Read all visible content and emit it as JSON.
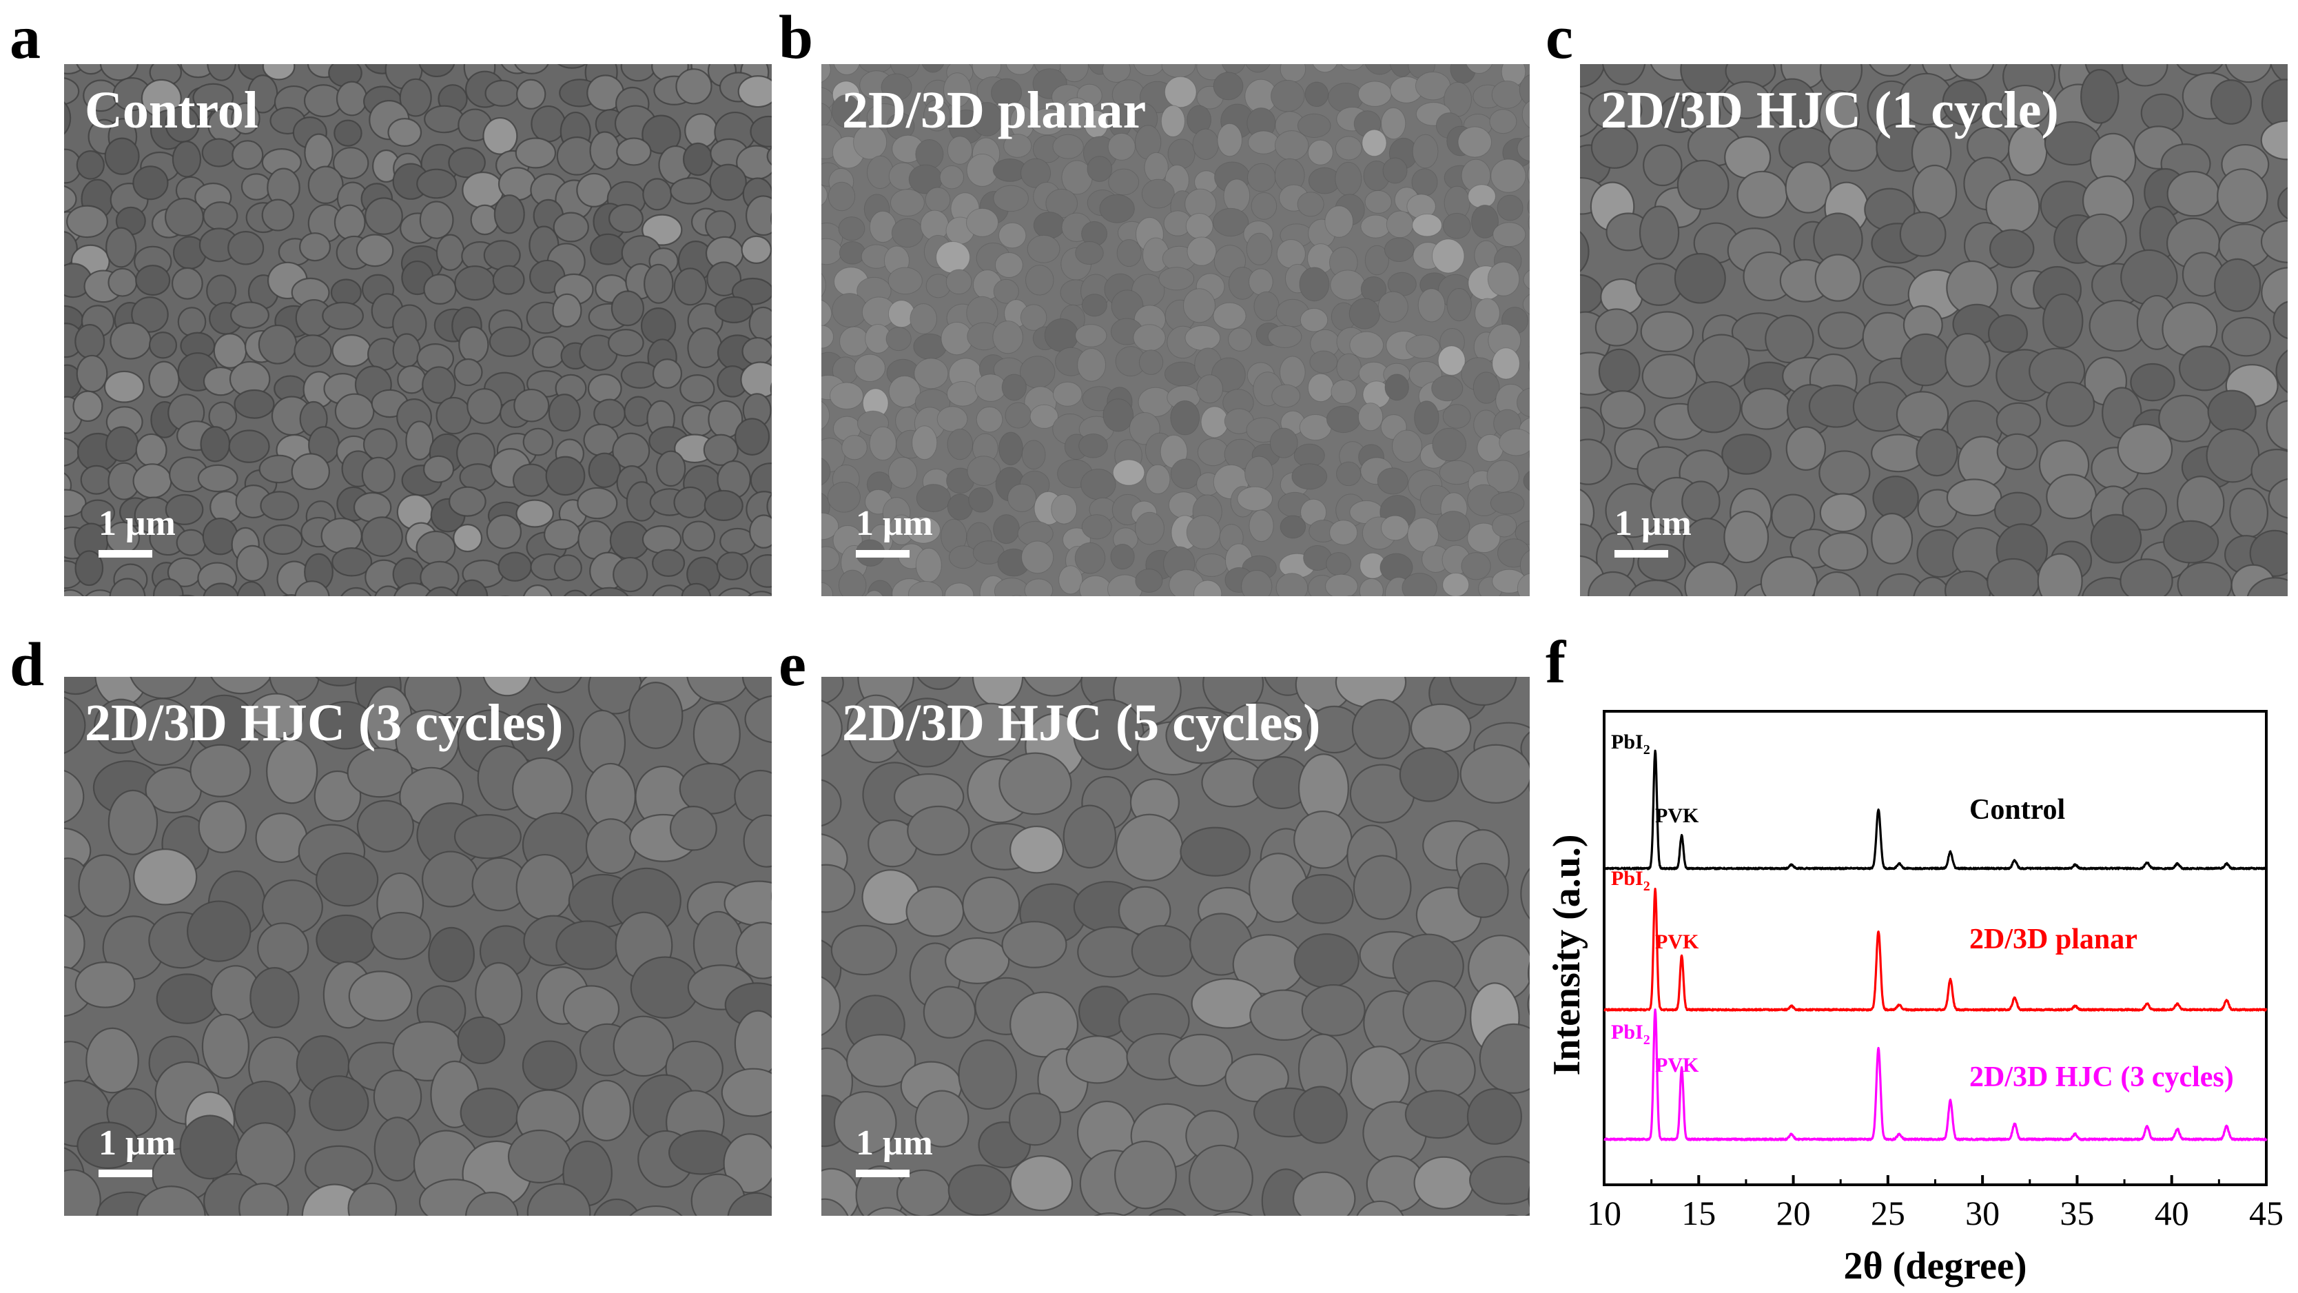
{
  "figure": {
    "panels": [
      {
        "letter": "a",
        "title": "Control",
        "scale_label": "1 μm"
      },
      {
        "letter": "b",
        "title": "2D/3D planar",
        "scale_label": "1 μm"
      },
      {
        "letter": "c",
        "title": "2D/3D HJC (1 cycle)",
        "scale_label": "1 μm"
      },
      {
        "letter": "d",
        "title": "2D/3D HJC (3 cycles)",
        "scale_label": "1 μm"
      },
      {
        "letter": "e",
        "title": "2D/3D HJC (5 cycles)",
        "scale_label": "1 μm"
      }
    ],
    "xrd_letter": "f"
  },
  "chart_data": {
    "type": "line",
    "xlabel": "2θ (degree)",
    "ylabel": "Intensity (a.u.)",
    "xlim": [
      10,
      45
    ],
    "x_ticks": [
      10,
      15,
      20,
      25,
      30,
      35,
      40,
      45
    ],
    "y_ticks_shown": false,
    "grid": false,
    "legend": "none",
    "peak_annotations": {
      "pbi2_prefix": "PbI",
      "pbi2_subscript": "2",
      "pvk": "PVK"
    },
    "series": [
      {
        "name": "Control",
        "color": "#000000",
        "peaks": [
          [
            12.7,
            1.0
          ],
          [
            14.1,
            0.28
          ],
          [
            19.9,
            0.03
          ],
          [
            24.5,
            0.5
          ],
          [
            25.6,
            0.04
          ],
          [
            28.3,
            0.14
          ],
          [
            31.7,
            0.07
          ],
          [
            34.9,
            0.03
          ],
          [
            38.7,
            0.05
          ],
          [
            40.3,
            0.04
          ],
          [
            42.9,
            0.04
          ]
        ]
      },
      {
        "name": "2D/3D planar",
        "color": "#ff0000",
        "peaks": [
          [
            12.7,
            1.0
          ],
          [
            14.1,
            0.45
          ],
          [
            19.9,
            0.03
          ],
          [
            24.5,
            0.65
          ],
          [
            25.6,
            0.04
          ],
          [
            28.3,
            0.25
          ],
          [
            31.7,
            0.1
          ],
          [
            34.9,
            0.03
          ],
          [
            38.7,
            0.05
          ],
          [
            40.3,
            0.05
          ],
          [
            42.9,
            0.08
          ]
        ]
      },
      {
        "name": "2D/3D HJC (3 cycles)",
        "color": "#ff00ff",
        "peaks": [
          [
            12.7,
            1.0
          ],
          [
            14.1,
            0.55
          ],
          [
            19.9,
            0.04
          ],
          [
            24.5,
            0.7
          ],
          [
            25.6,
            0.04
          ],
          [
            28.3,
            0.3
          ],
          [
            31.7,
            0.12
          ],
          [
            34.9,
            0.04
          ],
          [
            38.7,
            0.1
          ],
          [
            40.3,
            0.08
          ],
          [
            42.9,
            0.1
          ]
        ]
      }
    ]
  }
}
